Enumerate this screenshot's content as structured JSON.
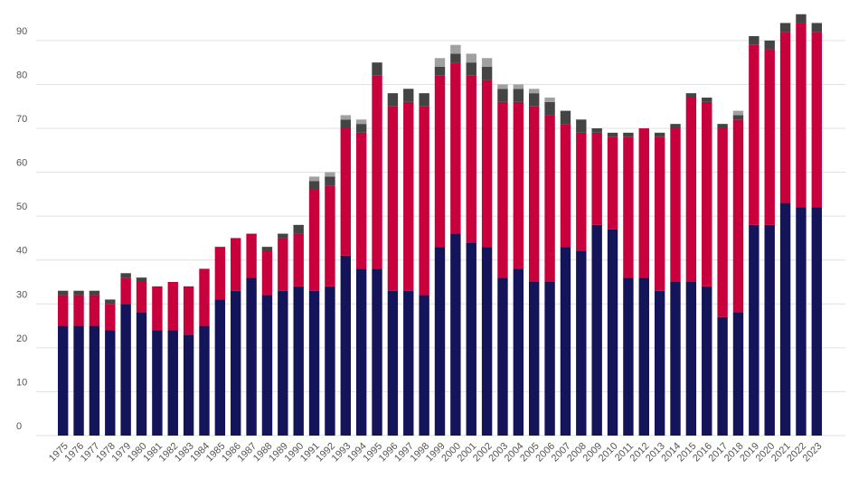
{
  "chart_data": {
    "type": "stacked_bar",
    "categories": [
      "1975",
      "1976",
      "1977",
      "1978",
      "1979",
      "1980",
      "1981",
      "1982",
      "1983",
      "1984",
      "1985",
      "1986",
      "1987",
      "1988",
      "1989",
      "1990",
      "1991",
      "1992",
      "1993",
      "1994",
      "1995",
      "1996",
      "1997",
      "1998",
      "1999",
      "2000",
      "2001",
      "2002",
      "2003",
      "2004",
      "2005",
      "2006",
      "2007",
      "2008",
      "2009",
      "2010",
      "2011",
      "2012",
      "2013",
      "2014",
      "2015",
      "2016",
      "2017",
      "2018",
      "2019",
      "2020",
      "2021",
      "2022",
      "2023"
    ],
    "series": [
      {
        "color": "#14145a",
        "values": [
          25,
          25,
          25,
          24,
          30,
          28,
          24,
          24,
          23,
          25,
          31,
          33,
          36,
          32,
          33,
          34,
          33,
          34,
          41,
          38,
          38,
          33,
          33,
          32,
          43,
          46,
          44,
          43,
          36,
          38,
          35,
          35,
          43,
          42,
          48,
          47,
          36,
          36,
          33,
          35,
          35,
          34,
          27,
          28,
          48,
          48,
          53,
          52,
          52
        ]
      },
      {
        "color": "#c8003c",
        "values": [
          7,
          7,
          7,
          6,
          6,
          7,
          10,
          11,
          11,
          13,
          12,
          12,
          10,
          10,
          12,
          12,
          23,
          23,
          29,
          31,
          44,
          42,
          43,
          43,
          39,
          39,
          38,
          38,
          40,
          38,
          40,
          38,
          28,
          27,
          21,
          21,
          32,
          34,
          35,
          35,
          42,
          42,
          43,
          44,
          41,
          40,
          39,
          42,
          40
        ]
      },
      {
        "color": "#444444",
        "values": [
          1,
          1,
          1,
          1,
          1,
          1,
          0,
          0,
          0,
          0,
          0,
          0,
          0,
          1,
          1,
          2,
          2,
          2,
          2,
          2,
          3,
          3,
          3,
          3,
          2,
          2,
          3,
          3,
          3,
          3,
          3,
          3,
          3,
          3,
          1,
          1,
          1,
          0,
          1,
          1,
          1,
          1,
          1,
          1,
          2,
          2,
          2,
          2,
          2
        ]
      },
      {
        "color": "#a0a0a0",
        "values": [
          0,
          0,
          0,
          0,
          0,
          0,
          0,
          0,
          0,
          0,
          0,
          0,
          0,
          0,
          0,
          0,
          1,
          1,
          1,
          1,
          0,
          0,
          0,
          0,
          2,
          2,
          2,
          2,
          1,
          1,
          1,
          1,
          0,
          0,
          0,
          0,
          0,
          0,
          0,
          0,
          0,
          0,
          0,
          1,
          0,
          0,
          0,
          0,
          0
        ]
      }
    ],
    "ylim": [
      0,
      98
    ],
    "yticks": [
      0,
      10,
      20,
      30,
      40,
      50,
      60,
      70,
      80,
      90
    ],
    "grid": true
  }
}
